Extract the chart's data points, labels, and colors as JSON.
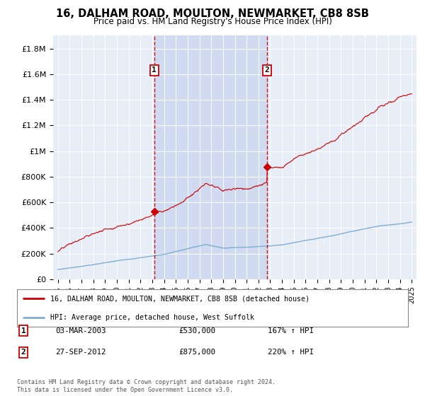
{
  "title": "16, DALHAM ROAD, MOULTON, NEWMARKET, CB8 8SB",
  "subtitle": "Price paid vs. HM Land Registry's House Price Index (HPI)",
  "plot_bg_color": "#e8eef8",
  "shaded_color": "#d0daf0",
  "ylabel_ticks": [
    "£0",
    "£200K",
    "£400K",
    "£600K",
    "£800K",
    "£1M",
    "£1.2M",
    "£1.4M",
    "£1.6M",
    "£1.8M"
  ],
  "ytick_values": [
    0,
    200000,
    400000,
    600000,
    800000,
    1000000,
    1200000,
    1400000,
    1600000,
    1800000
  ],
  "ylim": [
    0,
    1900000
  ],
  "sale1_year": 2003.17,
  "sale2_year": 2012.74,
  "sale1_price": 530000,
  "sale2_price": 875000,
  "legend_line1": "16, DALHAM ROAD, MOULTON, NEWMARKET, CB8 8SB (detached house)",
  "legend_line2": "HPI: Average price, detached house, West Suffolk",
  "footnote": "Contains HM Land Registry data © Crown copyright and database right 2024.\nThis data is licensed under the Open Government Licence v3.0.",
  "line_color_red": "#cc0000",
  "line_color_blue": "#7dadd4",
  "dashed_line_color": "#cc0000"
}
